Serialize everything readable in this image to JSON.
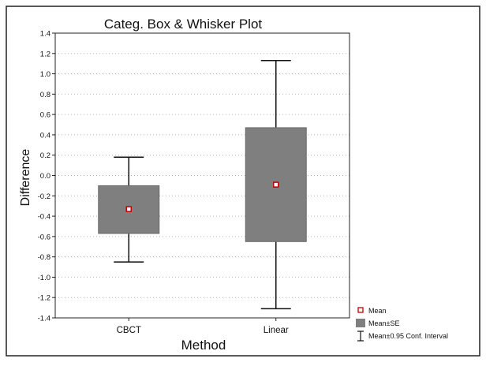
{
  "chart_data": {
    "type": "box",
    "title": "Categ. Box & Whisker Plot",
    "xlabel": "Method",
    "ylabel": "Difference",
    "ylim": [
      -1.4,
      1.4
    ],
    "yticks": [
      1.4,
      1.2,
      1.0,
      0.8,
      0.6,
      0.4,
      0.2,
      0.0,
      -0.2,
      -0.4,
      -0.6,
      -0.8,
      -1.0,
      -1.2,
      -1.4
    ],
    "ytick_labels": [
      "1.4",
      "1.2",
      "1.0",
      "0.8",
      "0.6",
      "0.4",
      "0.2",
      "0.0",
      "-0.2",
      "-0.4",
      "-0.6",
      "-0.8",
      "-1.0",
      "-1.2",
      "-1.4"
    ],
    "grid": "horizontal dotted",
    "categories": [
      "CBCT",
      "Linear"
    ],
    "boxes": [
      {
        "category": "CBCT",
        "mean": -0.33,
        "se_low": -0.57,
        "se_high": -0.1,
        "ci_low": -0.85,
        "ci_high": 0.18
      },
      {
        "category": "Linear",
        "mean": -0.09,
        "se_low": -0.65,
        "se_high": 0.47,
        "ci_low": -1.31,
        "ci_high": 1.13
      }
    ],
    "legend": {
      "position": "bottom-right",
      "items": [
        {
          "symbol": "mean-marker",
          "label": "Mean"
        },
        {
          "symbol": "box",
          "label": "Mean±SE"
        },
        {
          "symbol": "whisker",
          "label": "Mean±0.95 Conf. Interval"
        }
      ]
    },
    "colors": {
      "box_fill": "#7f7f7f",
      "mean_marker": "#c00000",
      "background": "#ffffff",
      "gridline": "#b0b0b0",
      "frame_border": "#222222"
    }
  }
}
